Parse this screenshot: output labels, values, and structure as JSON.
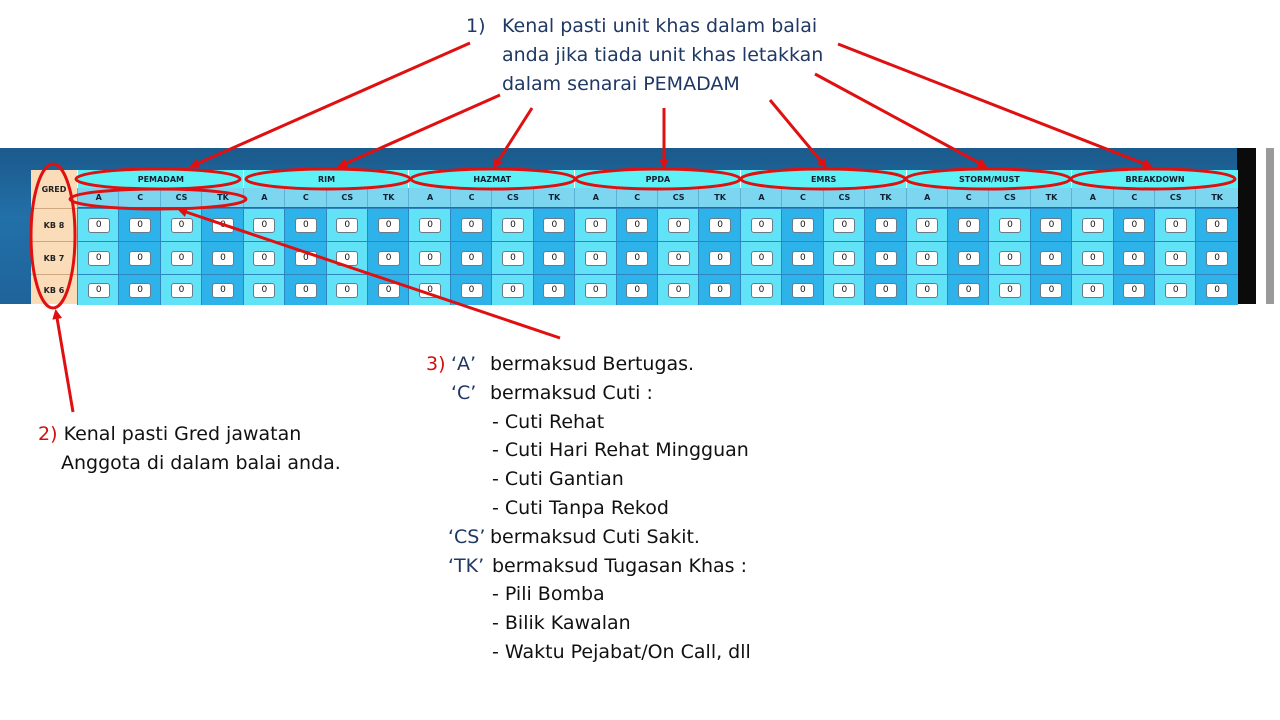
{
  "note1": {
    "number": "1)",
    "lines": [
      "Kenal pasti unit khas dalam balai",
      "anda jika tiada unit khas letakkan",
      "dalam senarai PEMADAM"
    ]
  },
  "table": {
    "gred_label": "GRED",
    "units": [
      "PEMADAM",
      "RIM",
      "HAZMAT",
      "PPDA",
      "EMRS",
      "STORM/MUST",
      "BREAKDOWN"
    ],
    "subcols": [
      "A",
      "C",
      "CS",
      "TK"
    ],
    "rows": [
      {
        "gred": "KB 8",
        "value": "0"
      },
      {
        "gred": "KB 7",
        "value": "0"
      },
      {
        "gred": "KB 6",
        "value": "0"
      }
    ]
  },
  "note2": {
    "number": "2)",
    "line1": "Kenal pasti Gred jawatan",
    "line2": "Anggota di dalam balai  anda."
  },
  "note3": {
    "number": "3)",
    "items": [
      {
        "code": "‘A’",
        "text": "bermaksud Bertugas.",
        "subitems": []
      },
      {
        "code": "‘C’",
        "text": "bermaksud Cuti :",
        "subitems": [
          "- Cuti Rehat",
          "- Cuti Hari Rehat Mingguan",
          "- Cuti Gantian",
          "- Cuti Tanpa Rekod"
        ]
      },
      {
        "code": "‘CS’",
        "text": "bermaksud Cuti Sakit.",
        "subitems": []
      },
      {
        "code": "‘TK’",
        "text": "bermaksud Tugasan Khas :",
        "subitems": [
          "- Pili Bomba",
          "- Bilik Kawalan",
          "- Waktu Pejabat/On Call, dll"
        ]
      }
    ]
  },
  "colors": {
    "accent_red": "#d01010",
    "heading_blue": "#1f3864",
    "cyan_header": "#5ef2f7",
    "cell_light": "#62e2f6",
    "cell_dark": "#2db3ea"
  }
}
